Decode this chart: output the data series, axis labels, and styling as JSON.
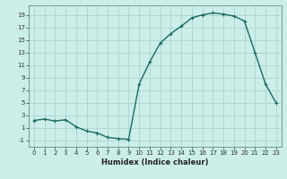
{
  "x": [
    0,
    1,
    2,
    3,
    4,
    5,
    6,
    7,
    8,
    9,
    10,
    11,
    12,
    13,
    14,
    15,
    16,
    17,
    18,
    19,
    20,
    21,
    22,
    23
  ],
  "y": [
    2.2,
    2.4,
    2.1,
    2.3,
    1.2,
    0.5,
    0.2,
    -0.5,
    -0.7,
    -0.8,
    8.0,
    11.5,
    14.5,
    16.0,
    17.2,
    18.5,
    19.0,
    19.3,
    19.1,
    18.8,
    18.0,
    13.0,
    8.0,
    5.0
  ],
  "line_color": "#1a6b5a",
  "marker": "+",
  "marker_size": 3,
  "marker_linewidth": 0.8,
  "bg_color": "#cceee8",
  "grid_color": "#aad4cc",
  "tick_color": "#333333",
  "xlabel": "Humidex (Indice chaleur)",
  "xlabel_fontsize": 6.0,
  "xlabel_bold": true,
  "xlim": [
    -0.5,
    23.5
  ],
  "ylim": [
    -2,
    20.5
  ],
  "yticks": [
    -1,
    1,
    3,
    5,
    7,
    9,
    11,
    13,
    15,
    17,
    19
  ],
  "xticks": [
    0,
    1,
    2,
    3,
    4,
    5,
    6,
    7,
    8,
    9,
    10,
    11,
    12,
    13,
    14,
    15,
    16,
    17,
    18,
    19,
    20,
    21,
    22,
    23
  ],
  "xtick_labels": [
    "0",
    "1",
    "2",
    "3",
    "4",
    "5",
    "6",
    "7",
    "8",
    "9",
    "10",
    "11",
    "12",
    "13",
    "14",
    "15",
    "16",
    "17",
    "18",
    "19",
    "20",
    "21",
    "22",
    "23"
  ],
  "line_width": 1.0,
  "tick_fontsize": 5.0
}
